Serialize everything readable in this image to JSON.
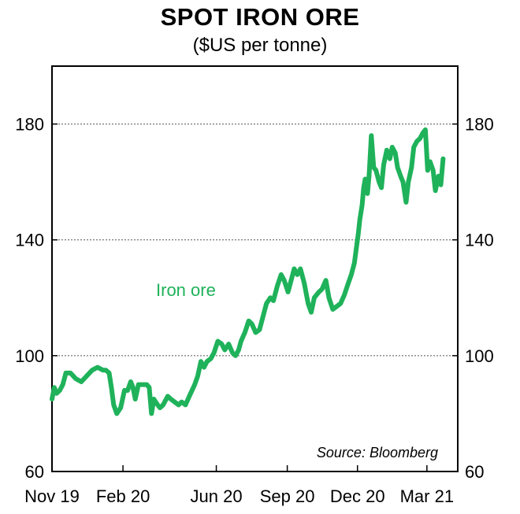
{
  "chart_data": {
    "type": "line",
    "title": "SPOT IRON ORE",
    "subtitle": "($US per tonne)",
    "ylim": [
      60,
      200
    ],
    "y_ticks": [
      60,
      100,
      140,
      180
    ],
    "grid": "horizontal dashed at 100, 140, 180",
    "x_ticks": [
      "Nov 19",
      "Feb 20",
      "Jun 20",
      "Sep 20",
      "Dec 20",
      "Mar 21"
    ],
    "x_tick_dates": [
      "2019-11-01",
      "2020-02-01",
      "2020-06-01",
      "2020-09-01",
      "2020-12-01",
      "2021-03-01"
    ],
    "x_range": [
      "2019-11-01",
      "2021-04-10"
    ],
    "source": "Source: Bloomberg",
    "series": [
      {
        "name": "Iron ore",
        "color": "#1fb25a",
        "points": [
          [
            "2019-11-01",
            85
          ],
          [
            "2019-11-04",
            89
          ],
          [
            "2019-11-07",
            87
          ],
          [
            "2019-11-11",
            88
          ],
          [
            "2019-11-15",
            90
          ],
          [
            "2019-11-19",
            94
          ],
          [
            "2019-11-25",
            94
          ],
          [
            "2019-12-02",
            92
          ],
          [
            "2019-12-09",
            91
          ],
          [
            "2019-12-16",
            93
          ],
          [
            "2019-12-23",
            95
          ],
          [
            "2019-12-30",
            96
          ],
          [
            "2020-01-06",
            95
          ],
          [
            "2020-01-10",
            95
          ],
          [
            "2020-01-14",
            94
          ],
          [
            "2020-01-17",
            89
          ],
          [
            "2020-01-20",
            83
          ],
          [
            "2020-01-24",
            80
          ],
          [
            "2020-01-29",
            82
          ],
          [
            "2020-02-03",
            88
          ],
          [
            "2020-02-07",
            88
          ],
          [
            "2020-02-11",
            91
          ],
          [
            "2020-02-14",
            89
          ],
          [
            "2020-02-17",
            85
          ],
          [
            "2020-02-21",
            90
          ],
          [
            "2020-02-26",
            90
          ],
          [
            "2020-03-03",
            90
          ],
          [
            "2020-03-06",
            89
          ],
          [
            "2020-03-09",
            80
          ],
          [
            "2020-03-12",
            85
          ],
          [
            "2020-03-17",
            83
          ],
          [
            "2020-03-20",
            82
          ],
          [
            "2020-03-24",
            83
          ],
          [
            "2020-03-30",
            86
          ],
          [
            "2020-04-03",
            85
          ],
          [
            "2020-04-08",
            84
          ],
          [
            "2020-04-13",
            83
          ],
          [
            "2020-04-17",
            84
          ],
          [
            "2020-04-22",
            83
          ],
          [
            "2020-04-27",
            86
          ],
          [
            "2020-05-04",
            90
          ],
          [
            "2020-05-08",
            93
          ],
          [
            "2020-05-12",
            98
          ],
          [
            "2020-05-16",
            96
          ],
          [
            "2020-05-20",
            98
          ],
          [
            "2020-05-25",
            99
          ],
          [
            "2020-05-29",
            101
          ],
          [
            "2020-06-03",
            105
          ],
          [
            "2020-06-08",
            104
          ],
          [
            "2020-06-12",
            102
          ],
          [
            "2020-06-17",
            104
          ],
          [
            "2020-06-22",
            101
          ],
          [
            "2020-06-26",
            100
          ],
          [
            "2020-06-30",
            102
          ],
          [
            "2020-07-03",
            105
          ],
          [
            "2020-07-08",
            108
          ],
          [
            "2020-07-13",
            112
          ],
          [
            "2020-07-17",
            111
          ],
          [
            "2020-07-22",
            108
          ],
          [
            "2020-07-27",
            109
          ],
          [
            "2020-07-31",
            113
          ],
          [
            "2020-08-05",
            118
          ],
          [
            "2020-08-10",
            120
          ],
          [
            "2020-08-14",
            119
          ],
          [
            "2020-08-19",
            124
          ],
          [
            "2020-08-24",
            128
          ],
          [
            "2020-08-28",
            126
          ],
          [
            "2020-09-02",
            122
          ],
          [
            "2020-09-07",
            127
          ],
          [
            "2020-09-10",
            130
          ],
          [
            "2020-09-14",
            128
          ],
          [
            "2020-09-18",
            130
          ],
          [
            "2020-09-23",
            125
          ],
          [
            "2020-09-28",
            118
          ],
          [
            "2020-10-02",
            115
          ],
          [
            "2020-10-06",
            120
          ],
          [
            "2020-10-12",
            122
          ],
          [
            "2020-10-16",
            123
          ],
          [
            "2020-10-21",
            126
          ],
          [
            "2020-10-25",
            120
          ],
          [
            "2020-10-30",
            116
          ],
          [
            "2020-11-04",
            117
          ],
          [
            "2020-11-09",
            118
          ],
          [
            "2020-11-14",
            121
          ],
          [
            "2020-11-19",
            125
          ],
          [
            "2020-11-23",
            128
          ],
          [
            "2020-11-27",
            132
          ],
          [
            "2020-11-30",
            138
          ],
          [
            "2020-12-02",
            142
          ],
          [
            "2020-12-04",
            147
          ],
          [
            "2020-12-07",
            152
          ],
          [
            "2020-12-09",
            158
          ],
          [
            "2020-12-11",
            161
          ],
          [
            "2020-12-14",
            156
          ],
          [
            "2020-12-16",
            162
          ],
          [
            "2020-12-19",
            176
          ],
          [
            "2020-12-22",
            165
          ],
          [
            "2020-12-25",
            164
          ],
          [
            "2020-12-29",
            160
          ],
          [
            "2021-01-01",
            158
          ],
          [
            "2021-01-04",
            166
          ],
          [
            "2021-01-08",
            171
          ],
          [
            "2021-01-12",
            168
          ],
          [
            "2021-01-15",
            172
          ],
          [
            "2021-01-19",
            170
          ],
          [
            "2021-01-22",
            165
          ],
          [
            "2021-01-26",
            162
          ],
          [
            "2021-01-29",
            160
          ],
          [
            "2021-02-02",
            153
          ],
          [
            "2021-02-05",
            160
          ],
          [
            "2021-02-09",
            165
          ],
          [
            "2021-02-12",
            172
          ],
          [
            "2021-02-16",
            174
          ],
          [
            "2021-02-20",
            175
          ],
          [
            "2021-02-24",
            177
          ],
          [
            "2021-02-27",
            178
          ],
          [
            "2021-03-02",
            164
          ],
          [
            "2021-03-05",
            167
          ],
          [
            "2021-03-09",
            164
          ],
          [
            "2021-03-12",
            157
          ],
          [
            "2021-03-16",
            162
          ],
          [
            "2021-03-19",
            159
          ],
          [
            "2021-03-22",
            168
          ]
        ]
      }
    ]
  }
}
